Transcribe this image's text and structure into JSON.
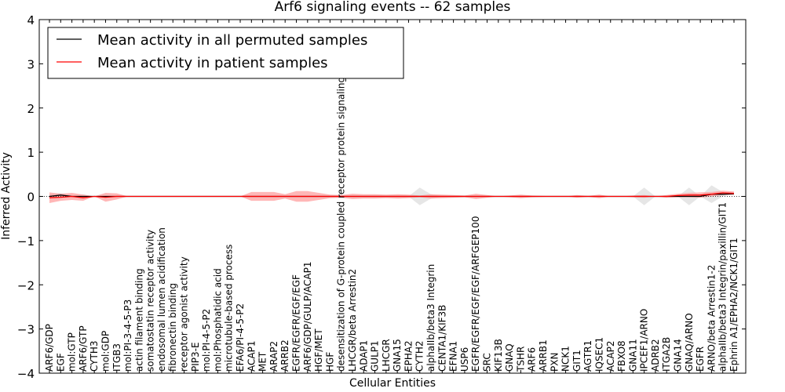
{
  "chart_data": {
    "type": "line",
    "title": "Arf6 signaling events -- 62 samples",
    "xlabel": "Cellular Entities",
    "ylabel": "Inferred Activity",
    "ylim": [
      -4,
      4
    ],
    "yticks": [
      -4,
      -3,
      -2,
      -1,
      0,
      1,
      2,
      3,
      4
    ],
    "legend_position": "top-left",
    "categories": [
      "ARF6/GDP",
      "EGF",
      "mol:GTP",
      "ARF6/GTP",
      "CYTH3",
      "mol:GDP",
      "ITGB3",
      "mol:PI-3-4-5-P3",
      "actin filament binding",
      "somatostatin receptor activity",
      "endosomal lumen acidification",
      "fibronectin binding",
      "receptor agonist activity",
      "PIP3-E",
      "mol:PI-4-5-P2",
      "mol:Phosphatidic acid",
      "microtubule-based process",
      "EFA6/PI-4-5-P2",
      "ACAP1",
      "MET",
      "ARAP2",
      "ARRB2",
      "EGFR/EGFR/EGF/EGF",
      "ARF6/GDP/GULP/ACAP1",
      "HGF/MET",
      "HGF",
      "desensitization of G-protein coupled receptor protein signaling pathway",
      "LHCGR/beta Arrestin2",
      "ADAP1",
      "GULP1",
      "LHCGR",
      "GNA15",
      "EPHA2",
      "CYTH2",
      "alphaIIb/beta3 Integrin",
      "CENTA1/KIF3B",
      "EFNA1",
      "USP6",
      "EGFR/EGFR/EGF/EGF/ARFGEP100",
      "SRC",
      "KIF13B",
      "GNAQ",
      "TSHR",
      "ARF6",
      "ARRB1",
      "PXN",
      "NCK1",
      "GIT1",
      "AGTR1",
      "IQSEC1",
      "ACAP2",
      "FBXO8",
      "GNA11",
      "IPCEF1/ARNO",
      "ADRB2",
      "ITGA2B",
      "GNA14",
      "GNAQ/ARNO",
      "EGFR",
      "ARNO/beta Arrestin1-2",
      "alphaIIb/beta3 Integrin/paxillin/GIT1",
      "Ephrin A1/EPHA2/NCK1/GIT1"
    ],
    "series": [
      {
        "name": "Mean activity in all permuted samples",
        "color": "#000000",
        "values": [
          0.0,
          0.03,
          0.0,
          0.0,
          0.0,
          0.0,
          0.0,
          0.0,
          0.0,
          0.0,
          0.0,
          0.0,
          0.0,
          0.0,
          0.0,
          0.0,
          0.0,
          0.0,
          0.0,
          0.0,
          0.0,
          0.0,
          0.0,
          0.0,
          0.0,
          0.0,
          0.0,
          0.0,
          0.0,
          0.0,
          0.0,
          0.0,
          0.0,
          0.0,
          0.0,
          0.0,
          0.0,
          0.0,
          0.0,
          0.0,
          0.0,
          0.0,
          0.0,
          0.0,
          0.0,
          0.0,
          0.0,
          0.0,
          0.0,
          0.0,
          0.0,
          0.0,
          0.0,
          0.0,
          0.0,
          0.0,
          0.0,
          0.0,
          0.0,
          0.05,
          0.05,
          0.06
        ],
        "band": [
          0.05,
          0.05,
          0.02,
          0.05,
          0.0,
          0.0,
          0.0,
          0.0,
          0.0,
          0.0,
          0.0,
          0.0,
          0.0,
          0.0,
          0.0,
          0.0,
          0.0,
          0.0,
          0.0,
          0.0,
          0.0,
          0.0,
          0.0,
          0.0,
          0.0,
          0.0,
          0.0,
          0.0,
          0.0,
          0.0,
          0.0,
          0.0,
          0.0,
          0.2,
          0.05,
          0.0,
          0.0,
          0.0,
          0.0,
          0.0,
          0.0,
          0.0,
          0.0,
          0.0,
          0.0,
          0.0,
          0.0,
          0.0,
          0.0,
          0.0,
          0.0,
          0.0,
          0.0,
          0.2,
          0.0,
          0.0,
          0.0,
          0.2,
          0.0,
          0.2,
          0.05,
          0.0
        ],
        "band_color": "#dddddd"
      },
      {
        "name": "Mean activity in patient samples",
        "color": "#ff0000",
        "values": [
          -0.03,
          -0.02,
          0.0,
          -0.03,
          0.0,
          -0.02,
          0.0,
          0.0,
          0.0,
          0.0,
          0.0,
          0.0,
          0.0,
          0.0,
          0.0,
          0.0,
          0.0,
          0.0,
          0.0,
          0.0,
          0.0,
          0.0,
          0.0,
          0.0,
          0.0,
          0.0,
          0.0,
          0.0,
          0.0,
          0.0,
          0.0,
          0.0,
          0.0,
          0.0,
          0.0,
          0.0,
          0.0,
          0.0,
          0.0,
          0.0,
          0.0,
          0.0,
          0.0,
          0.0,
          0.0,
          0.0,
          0.0,
          0.0,
          0.0,
          0.0,
          0.0,
          0.0,
          0.0,
          0.0,
          0.0,
          0.0,
          0.02,
          0.03,
          0.03,
          0.05,
          0.08,
          0.07
        ],
        "band": [
          0.12,
          0.08,
          0.08,
          0.07,
          0.0,
          0.1,
          0.07,
          0.0,
          0.0,
          0.0,
          0.0,
          0.0,
          0.0,
          0.0,
          0.0,
          0.0,
          0.0,
          0.0,
          0.1,
          0.1,
          0.1,
          0.05,
          0.12,
          0.12,
          0.08,
          0.04,
          0.03,
          0.06,
          0.05,
          0.05,
          0.04,
          0.05,
          0.04,
          0.02,
          0.05,
          0.04,
          0.03,
          0.02,
          0.06,
          0.03,
          0.0,
          0.02,
          0.04,
          0.02,
          0.01,
          0.0,
          0.0,
          0.03,
          0.01,
          0.04,
          0.0,
          0.0,
          0.02,
          0.03,
          0.0,
          0.03,
          0.04,
          0.05,
          0.06,
          0.05,
          0.05,
          0.04
        ],
        "band_color": "#ff9999"
      }
    ]
  }
}
